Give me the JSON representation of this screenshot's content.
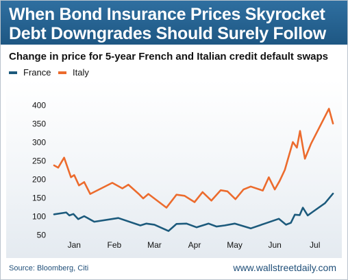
{
  "banner": {
    "line1": "When Bond Insurance Prices Skyrocket",
    "line2": "Debt Downgrades Should Surely Follow"
  },
  "footer": {
    "source": "Source: Bloomberg, Citi",
    "website": "www.wallstreetdaily.com"
  },
  "chart_data": {
    "type": "line",
    "title": "Change in price for 5-year French and Italian credit default swaps",
    "ylim": [
      50,
      400
    ],
    "yticks": [
      50,
      100,
      150,
      200,
      250,
      300,
      350,
      400
    ],
    "xlim": [
      0,
      7
    ],
    "month_labels": [
      "Jan",
      "Feb",
      "Mar",
      "Apr",
      "May",
      "Jun",
      "Jul"
    ],
    "month_positions": [
      0.5,
      1.5,
      2.5,
      3.5,
      4.5,
      5.5,
      6.5
    ],
    "legend_position": "top-left",
    "colors": {
      "France": "#1c5a7c",
      "Italy": "#ec6b2d"
    },
    "series": [
      {
        "name": "France",
        "x": [
          0.0,
          0.3,
          0.38,
          0.48,
          0.6,
          0.75,
          1.0,
          1.6,
          2.15,
          2.3,
          2.5,
          2.85,
          3.05,
          3.3,
          3.55,
          3.85,
          4.05,
          4.25,
          4.5,
          4.9,
          5.25,
          5.6,
          5.78,
          5.9,
          6.0,
          6.12,
          6.2,
          6.32,
          6.45,
          6.75,
          6.95
        ],
        "values": [
          105,
          110,
          102,
          106,
          92,
          100,
          85,
          95,
          75,
          80,
          77,
          60,
          79,
          80,
          70,
          80,
          72,
          75,
          80,
          67,
          80,
          93,
          77,
          82,
          104,
          103,
          123,
          102,
          112,
          135,
          161
        ]
      },
      {
        "name": "Italy",
        "x": [
          0.0,
          0.1,
          0.25,
          0.42,
          0.5,
          0.62,
          0.75,
          0.9,
          1.45,
          1.7,
          1.85,
          2.1,
          2.22,
          2.35,
          2.8,
          3.05,
          3.25,
          3.5,
          3.7,
          3.92,
          4.15,
          4.32,
          4.52,
          4.72,
          4.9,
          5.2,
          5.35,
          5.5,
          5.62,
          5.75,
          5.95,
          6.05,
          6.13,
          6.25,
          6.4,
          6.85,
          6.95
        ],
        "values": [
          237,
          231,
          258,
          205,
          211,
          183,
          192,
          160,
          190,
          175,
          185,
          161,
          148,
          160,
          123,
          158,
          155,
          138,
          165,
          142,
          170,
          167,
          146,
          172,
          180,
          169,
          205,
          172,
          195,
          225,
          300,
          285,
          330,
          255,
          295,
          390,
          350
        ]
      }
    ]
  }
}
